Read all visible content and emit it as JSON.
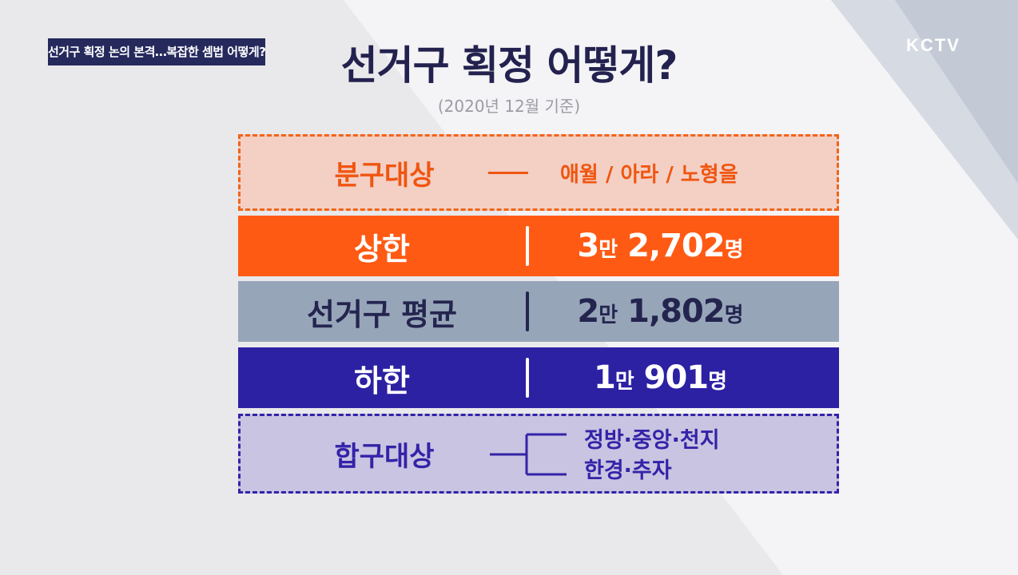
{
  "ticker": "선거구 획정 논의 본격…복잡한 셈법 어떻게?",
  "logo": "KCTV",
  "title": "선거구 획정 어떻게?",
  "subtitle": "(2020년 12월 기준)",
  "split": {
    "label": "분구대상",
    "value": "애월 / 아라 / 노형을"
  },
  "rows": [
    {
      "label": "상한",
      "num": "3",
      "man": "만",
      "rest": " 2,702",
      "unit": "명"
    },
    {
      "label": "선거구 평균",
      "num": "2",
      "man": "만",
      "rest": " 1,802",
      "unit": "명"
    },
    {
      "label": "하한",
      "num": "1",
      "man": "만",
      "rest": " 901",
      "unit": "명"
    }
  ],
  "merge": {
    "label": "합구대상",
    "line1": "정방·중앙·천지",
    "line2": "한경·추자"
  },
  "colors": {
    "orange": "#ff5a14",
    "navy": "#2c20a3",
    "slate": "#97a5b9"
  }
}
